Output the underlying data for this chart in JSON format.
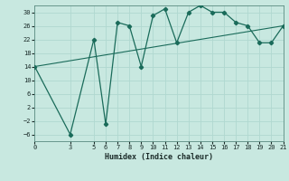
{
  "xlabel": "Humidex (Indice chaleur)",
  "ylabel": "",
  "background_color": "#c8e8e0",
  "grid_color": "#b0d8d0",
  "line_color": "#1a6b5a",
  "marker_color": "#1a6b5a",
  "xlim": [
    0,
    21
  ],
  "ylim": [
    -8,
    32
  ],
  "xticks": [
    0,
    3,
    5,
    6,
    7,
    8,
    9,
    10,
    11,
    12,
    13,
    14,
    15,
    16,
    17,
    18,
    19,
    20,
    21
  ],
  "yticks": [
    -6,
    -2,
    2,
    6,
    10,
    14,
    18,
    22,
    26,
    30
  ],
  "curve1_x": [
    0,
    3,
    5,
    6,
    7,
    8,
    9,
    10,
    11,
    12,
    13,
    14,
    15,
    16,
    17,
    18,
    19,
    20,
    21
  ],
  "curve1_y": [
    14,
    -6,
    22,
    -3,
    27,
    26,
    14,
    29,
    31,
    21,
    30,
    32,
    30,
    30,
    27,
    26,
    21,
    21,
    26
  ],
  "curve2_x": [
    0,
    21
  ],
  "curve2_y": [
    14,
    26
  ]
}
